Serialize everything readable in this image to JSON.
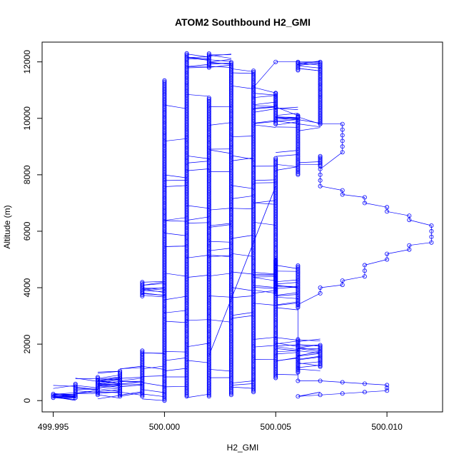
{
  "chart_data": {
    "type": "scatter",
    "title": "ATOM2 Southbound H2_GMI",
    "xlabel": "H2_GMI",
    "ylabel": "Altitude (m)",
    "xlim": [
      499.9945,
      500.0125
    ],
    "ylim": [
      -400,
      12700
    ],
    "xticks": [
      499.995,
      500.0,
      500.005,
      500.01
    ],
    "xtick_labels": [
      "499.995",
      "500.000",
      "500.005",
      "500.010"
    ],
    "yticks": [
      0,
      2000,
      4000,
      6000,
      8000,
      10000,
      12000
    ],
    "ytick_labels": [
      "0",
      "2000",
      "4000",
      "6000",
      "8000",
      "10000",
      "12000"
    ],
    "grid": false,
    "series_color": "#0000ff",
    "marker": "open-circle",
    "connected_by_lines": true,
    "columns": [
      {
        "x": 499.995,
        "ymin": 100,
        "ymax": 250
      },
      {
        "x": 499.996,
        "ymin": 100,
        "ymax": 600
      },
      {
        "x": 499.997,
        "ymin": 200,
        "ymax": 850
      },
      {
        "x": 499.998,
        "ymin": 150,
        "ymax": 1050
      },
      {
        "x": 499.999,
        "ymin": 150,
        "ymax": 1800
      },
      {
        "x": 499.999,
        "ymin": 3700,
        "ymax": 4200
      },
      {
        "x": 500.0,
        "ymin": 0,
        "ymax": 11350
      },
      {
        "x": 500.001,
        "ymin": 150,
        "ymax": 12300
      },
      {
        "x": 500.002,
        "ymin": 150,
        "ymax": 10750
      },
      {
        "x": 500.002,
        "ymin": 11800,
        "ymax": 12300
      },
      {
        "x": 500.003,
        "ymin": 200,
        "ymax": 12000
      },
      {
        "x": 500.004,
        "ymin": 300,
        "ymax": 11700
      },
      {
        "x": 500.005,
        "ymin": 800,
        "ymax": 8600
      },
      {
        "x": 500.005,
        "ymin": 3800,
        "ymax": 5000
      },
      {
        "x": 500.005,
        "ymin": 9800,
        "ymax": 10900
      },
      {
        "x": 500.006,
        "ymin": 1000,
        "ymax": 2200
      },
      {
        "x": 500.006,
        "ymin": 3300,
        "ymax": 4800
      },
      {
        "x": 500.006,
        "ymin": 8000,
        "ymax": 10100
      },
      {
        "x": 500.006,
        "ymin": 11700,
        "ymax": 12000
      },
      {
        "x": 500.007,
        "ymin": 1200,
        "ymax": 2000
      },
      {
        "x": 500.007,
        "ymin": 8300,
        "ymax": 8700
      },
      {
        "x": 500.007,
        "ymin": 9800,
        "ymax": 12000
      }
    ],
    "profile_points": [
      {
        "x": 500.006,
        "y": 150
      },
      {
        "x": 500.007,
        "y": 200
      },
      {
        "x": 500.008,
        "y": 250
      },
      {
        "x": 500.009,
        "y": 300
      },
      {
        "x": 500.01,
        "y": 350
      },
      {
        "x": 500.01,
        "y": 450
      },
      {
        "x": 500.01,
        "y": 550
      },
      {
        "x": 500.009,
        "y": 600
      },
      {
        "x": 500.008,
        "y": 650
      },
      {
        "x": 500.007,
        "y": 700
      },
      {
        "x": 500.006,
        "y": 700
      },
      {
        "x": 500.006,
        "y": 3400
      },
      {
        "x": 500.007,
        "y": 3800
      },
      {
        "x": 500.007,
        "y": 4000
      },
      {
        "x": 500.008,
        "y": 4100
      },
      {
        "x": 500.008,
        "y": 4250
      },
      {
        "x": 500.009,
        "y": 4400
      },
      {
        "x": 500.009,
        "y": 4600
      },
      {
        "x": 500.009,
        "y": 4800
      },
      {
        "x": 500.01,
        "y": 5000
      },
      {
        "x": 500.01,
        "y": 5200
      },
      {
        "x": 500.011,
        "y": 5350
      },
      {
        "x": 500.011,
        "y": 5500
      },
      {
        "x": 500.012,
        "y": 5600
      },
      {
        "x": 500.012,
        "y": 5800
      },
      {
        "x": 500.012,
        "y": 6000
      },
      {
        "x": 500.012,
        "y": 6200
      },
      {
        "x": 500.011,
        "y": 6400
      },
      {
        "x": 500.011,
        "y": 6550
      },
      {
        "x": 500.01,
        "y": 6700
      },
      {
        "x": 500.01,
        "y": 6850
      },
      {
        "x": 500.009,
        "y": 7000
      },
      {
        "x": 500.009,
        "y": 7200
      },
      {
        "x": 500.008,
        "y": 7300
      },
      {
        "x": 500.008,
        "y": 7450
      },
      {
        "x": 500.007,
        "y": 7600
      },
      {
        "x": 500.007,
        "y": 7800
      },
      {
        "x": 500.007,
        "y": 8000
      },
      {
        "x": 500.007,
        "y": 8200
      },
      {
        "x": 500.008,
        "y": 8800
      },
      {
        "x": 500.008,
        "y": 9000
      },
      {
        "x": 500.008,
        "y": 9200
      },
      {
        "x": 500.008,
        "y": 9400
      },
      {
        "x": 500.008,
        "y": 9600
      },
      {
        "x": 500.008,
        "y": 9800
      },
      {
        "x": 500.007,
        "y": 9800
      },
      {
        "x": 500.006,
        "y": 10050
      },
      {
        "x": 500.006,
        "y": 10100
      },
      {
        "x": 500.005,
        "y": 10400
      },
      {
        "x": 500.005,
        "y": 10900
      },
      {
        "x": 500.004,
        "y": 11100
      },
      {
        "x": 500.005,
        "y": 12000
      },
      {
        "x": 500.006,
        "y": 12000
      },
      {
        "x": 500.007,
        "y": 12000
      }
    ],
    "long_segments": [
      {
        "x1": 500.002,
        "y1": 1600,
        "x2": 500.005,
        "y2": 7600
      },
      {
        "x1": 500.006,
        "y1": 150,
        "x2": 500.007,
        "y2": 300
      }
    ]
  }
}
